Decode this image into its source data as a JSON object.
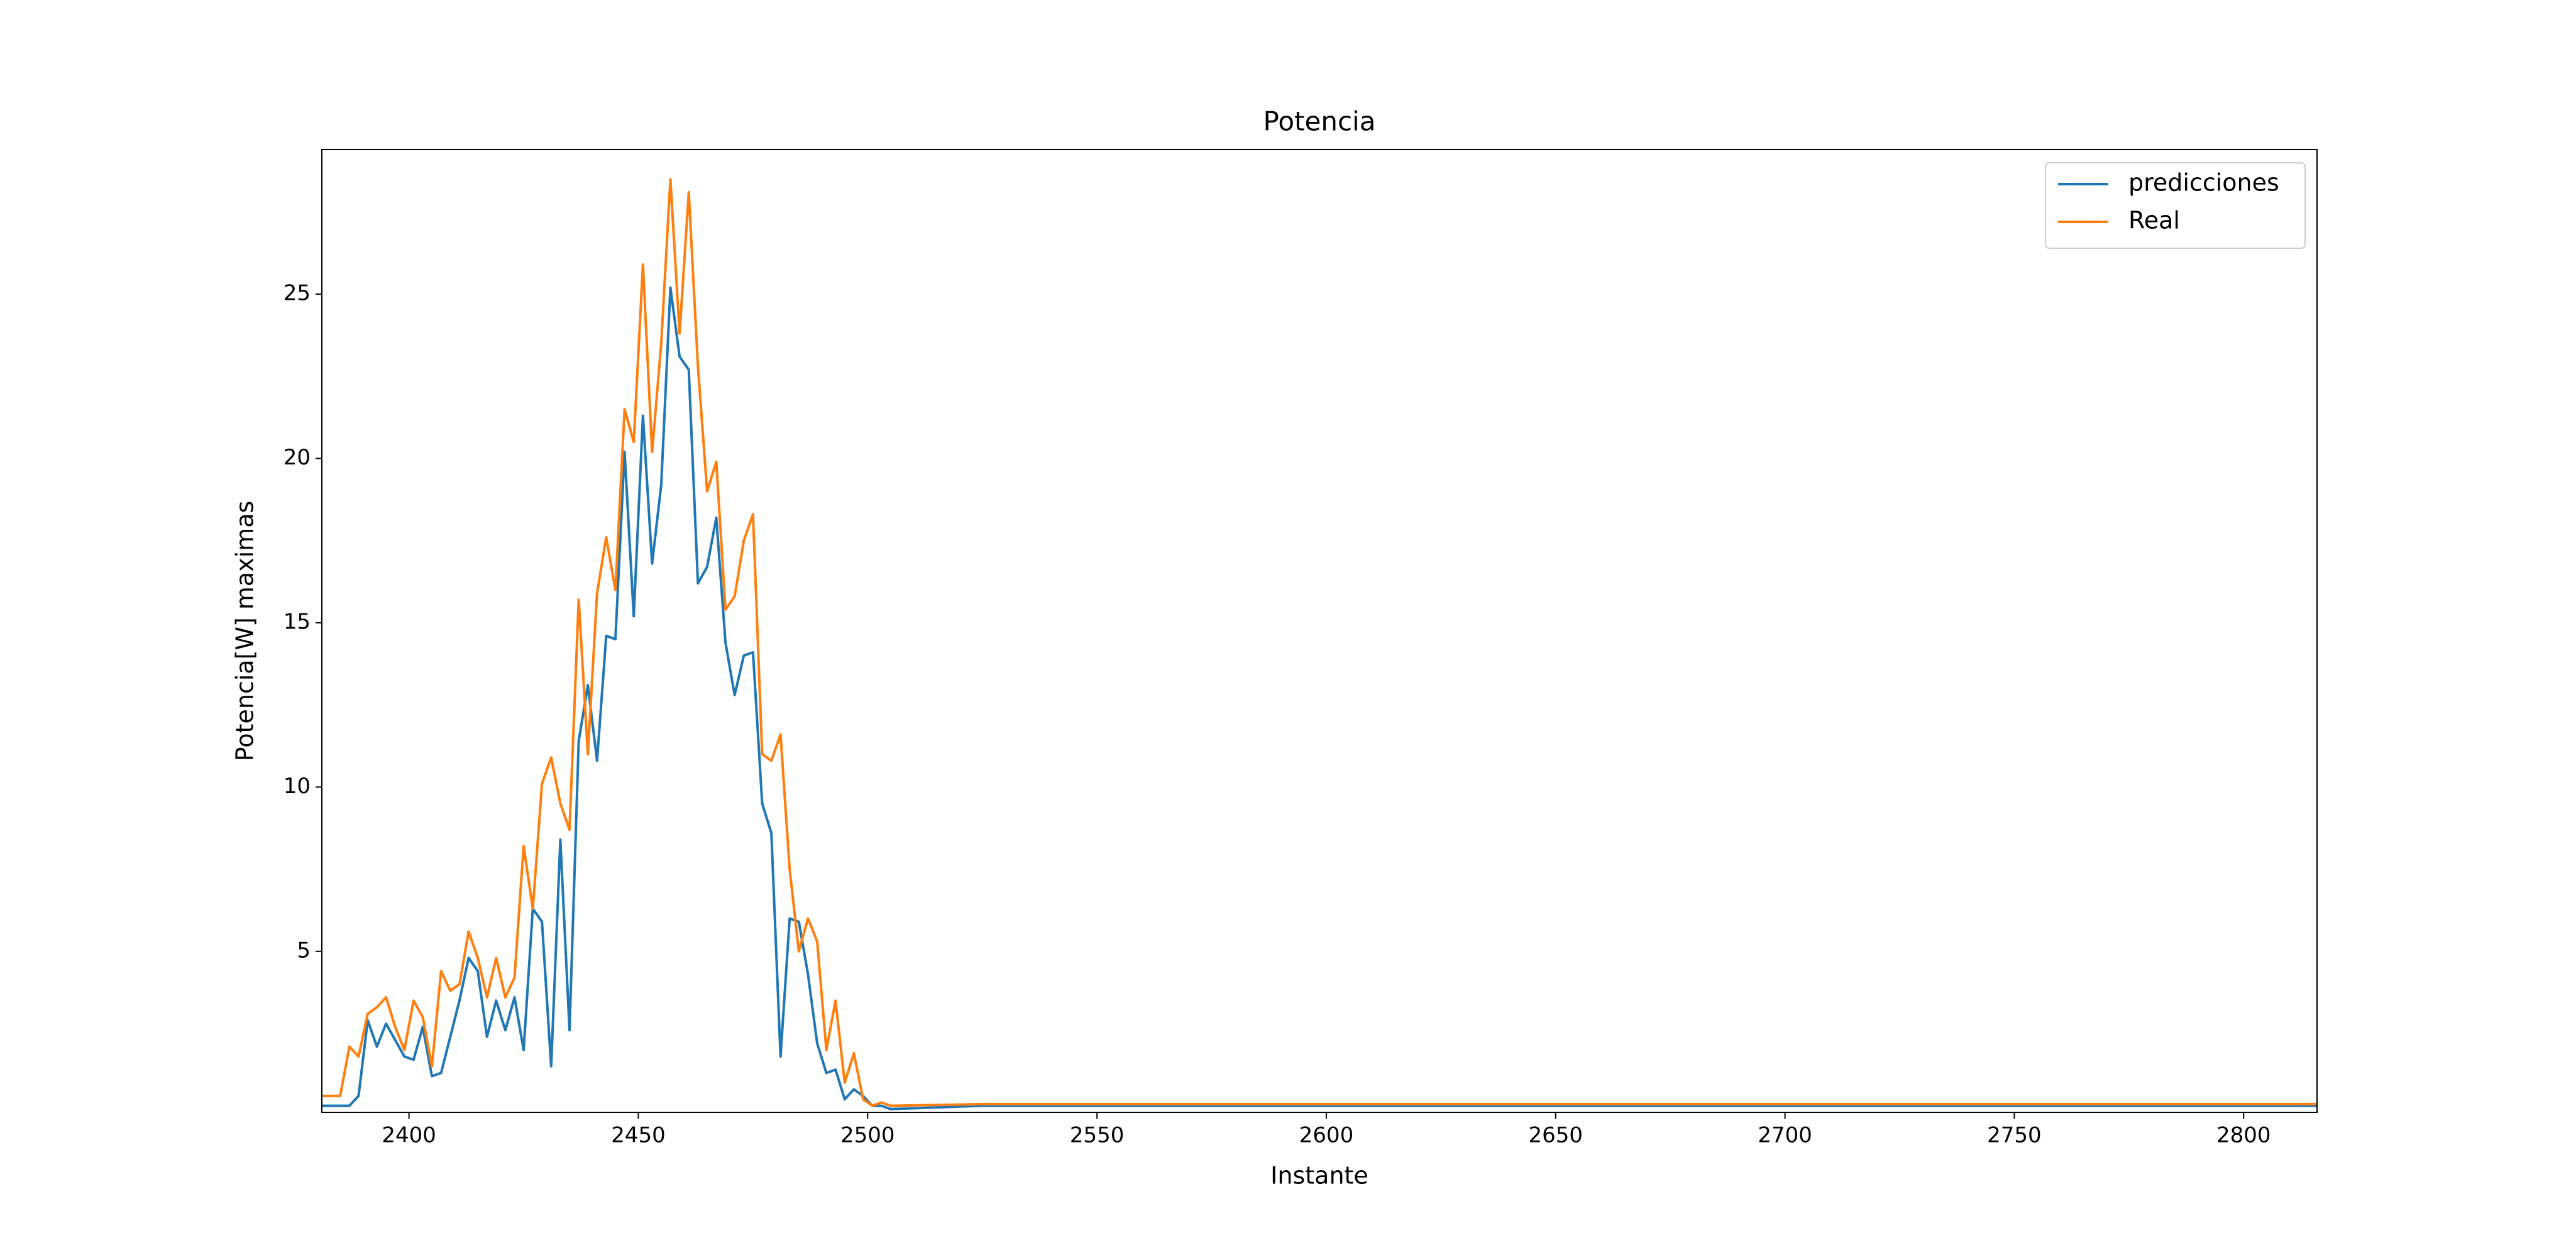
{
  "chart_data": {
    "type": "line",
    "title": "Potencia",
    "xlabel": "Instante",
    "ylabel": "Potencia[W] maximas",
    "x": [
      2381,
      2383,
      2385,
      2387,
      2389,
      2391,
      2393,
      2395,
      2397,
      2399,
      2401,
      2403,
      2405,
      2407,
      2409,
      2411,
      2413,
      2415,
      2417,
      2419,
      2421,
      2423,
      2425,
      2427,
      2429,
      2431,
      2433,
      2435,
      2437,
      2439,
      2441,
      2443,
      2445,
      2447,
      2449,
      2451,
      2453,
      2455,
      2457,
      2459,
      2461,
      2463,
      2465,
      2467,
      2469,
      2471,
      2473,
      2475,
      2477,
      2479,
      2481,
      2483,
      2485,
      2487,
      2489,
      2491,
      2493,
      2495,
      2497,
      2499,
      2501,
      2503,
      2505,
      2525,
      2550,
      2600,
      2650,
      2700,
      2750,
      2800,
      2816
    ],
    "series": [
      {
        "name": "predicciones",
        "color": "#1f77b4",
        "values": [
          0.3,
          0.3,
          0.3,
          0.3,
          0.6,
          2.9,
          2.1,
          2.8,
          2.3,
          1.8,
          1.7,
          2.7,
          1.2,
          1.3,
          2.4,
          3.5,
          4.8,
          4.4,
          2.4,
          3.5,
          2.6,
          3.6,
          2.0,
          6.3,
          5.9,
          1.5,
          8.4,
          2.6,
          11.4,
          13.1,
          10.8,
          14.6,
          14.5,
          20.2,
          15.2,
          21.3,
          16.8,
          19.2,
          25.2,
          23.1,
          22.7,
          16.2,
          16.7,
          18.2,
          14.4,
          12.8,
          14.0,
          14.1,
          9.5,
          8.6,
          1.8,
          6.0,
          5.9,
          4.3,
          2.2,
          1.3,
          1.4,
          0.5,
          0.8,
          0.6,
          0.3,
          0.3,
          0.2,
          0.3,
          0.3,
          0.3,
          0.3,
          0.3,
          0.3,
          0.3,
          0.3
        ]
      },
      {
        "name": "Real",
        "color": "#ff7f0e",
        "values": [
          0.6,
          0.6,
          0.6,
          2.1,
          1.8,
          3.1,
          3.3,
          3.6,
          2.7,
          2.0,
          3.5,
          3.0,
          1.5,
          4.4,
          3.8,
          4.0,
          5.6,
          4.8,
          3.6,
          4.8,
          3.6,
          4.2,
          8.2,
          6.3,
          10.1,
          10.9,
          9.5,
          8.7,
          15.7,
          11.0,
          15.9,
          17.6,
          16.0,
          21.5,
          20.5,
          25.9,
          20.2,
          23.5,
          28.5,
          23.8,
          28.1,
          22.8,
          19.0,
          19.9,
          15.4,
          15.8,
          17.5,
          18.3,
          11.0,
          10.8,
          11.6,
          7.5,
          5.0,
          6.0,
          5.3,
          2.0,
          3.5,
          1.0,
          1.9,
          0.5,
          0.3,
          0.4,
          0.3,
          0.35,
          0.35,
          0.35,
          0.35,
          0.35,
          0.35,
          0.35,
          0.35
        ]
      }
    ],
    "xlim": [
      2381,
      2816
    ],
    "ylim": [
      0.1,
      29.4
    ],
    "xticks": [
      2400,
      2450,
      2500,
      2550,
      2600,
      2650,
      2700,
      2750,
      2800
    ],
    "yticks": [
      5,
      10,
      15,
      20,
      25
    ],
    "legend": "upper right"
  }
}
